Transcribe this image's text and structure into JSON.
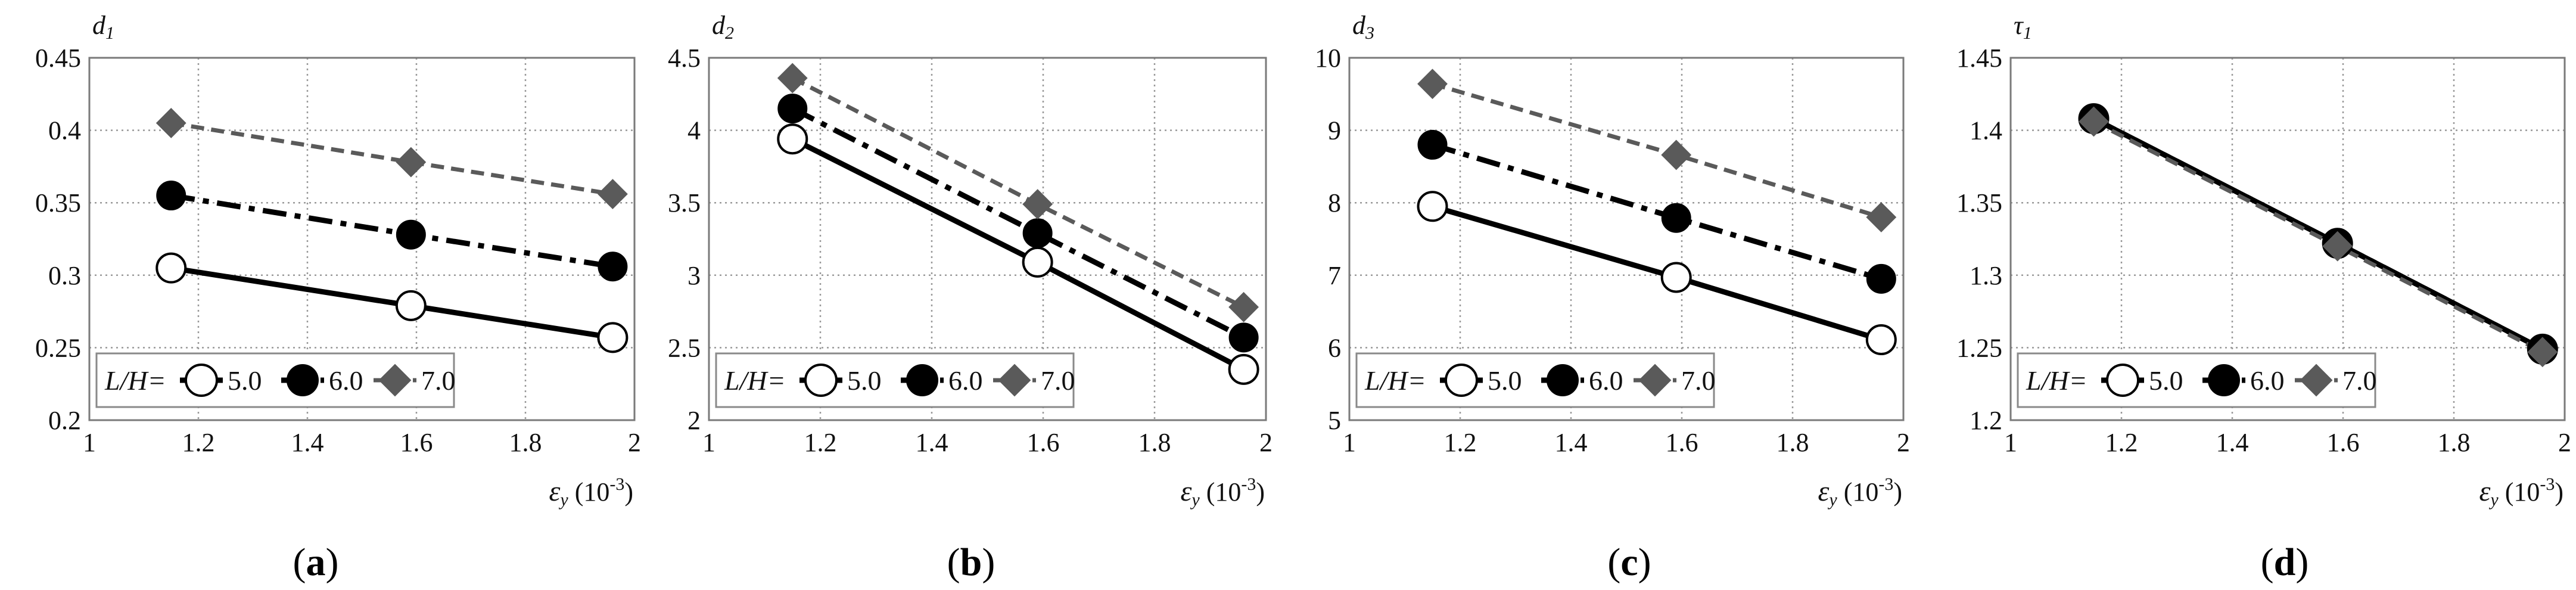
{
  "legend": {
    "prefix": "L/H=",
    "entries": [
      "5.0",
      "6.0",
      "7.0"
    ]
  },
  "colors": {
    "series_5": "#000000",
    "series_6": "#000000",
    "series_7": "#5a5a5a",
    "grid": "#9a9a9a",
    "frame": "#7a7a7a",
    "legend_border": "#8a8a8a"
  },
  "markers": {
    "series_5": "circle-open",
    "series_6": "circle-filled",
    "series_7": "diamond-filled"
  },
  "chart_data": [
    {
      "type": "line",
      "ylabel_sym": "d",
      "ylabel_sub": "1",
      "xlabel_sym": "ε",
      "xlabel_sub": "y",
      "xlabel_unit": "(10",
      "xlabel_exp": "-3",
      "xlabel_close": ")",
      "caption": "a",
      "xlim": [
        1,
        2
      ],
      "ylim": [
        0.2,
        0.45
      ],
      "xticks": [
        "1",
        "1.2",
        "1.4",
        "1.6",
        "1.8",
        "2"
      ],
      "yticks": [
        "0.2",
        "0.25",
        "0.3",
        "0.35",
        "0.4",
        "0.45"
      ],
      "x": [
        1.15,
        1.59,
        1.96
      ],
      "series": [
        {
          "name": "5.0",
          "values": [
            0.305,
            0.279,
            0.257
          ]
        },
        {
          "name": "6.0",
          "values": [
            0.355,
            0.328,
            0.306
          ]
        },
        {
          "name": "7.0",
          "values": [
            0.405,
            0.378,
            0.356
          ]
        }
      ]
    },
    {
      "type": "line",
      "ylabel_sym": "d",
      "ylabel_sub": "2",
      "xlabel_sym": "ε",
      "xlabel_sub": "y",
      "xlabel_unit": "(10",
      "xlabel_exp": "-3",
      "xlabel_close": ")",
      "caption": "b",
      "xlim": [
        1,
        2
      ],
      "ylim": [
        2,
        4.5
      ],
      "xticks": [
        "1",
        "1.2",
        "1.4",
        "1.6",
        "1.8",
        "2"
      ],
      "yticks": [
        "2",
        "2.5",
        "3",
        "3.5",
        "4",
        "4.5"
      ],
      "x": [
        1.15,
        1.59,
        1.96
      ],
      "series": [
        {
          "name": "5.0",
          "values": [
            3.94,
            3.09,
            2.35
          ]
        },
        {
          "name": "6.0",
          "values": [
            4.15,
            3.29,
            2.57
          ]
        },
        {
          "name": "7.0",
          "values": [
            4.36,
            3.49,
            2.78
          ]
        }
      ]
    },
    {
      "type": "line",
      "ylabel_sym": "d",
      "ylabel_sub": "3",
      "xlabel_sym": "ε",
      "xlabel_sub": "y",
      "xlabel_unit": "(10",
      "xlabel_exp": "-3",
      "xlabel_close": ")",
      "caption": "c",
      "xlim": [
        1,
        2
      ],
      "ylim": [
        5,
        10
      ],
      "xticks": [
        "1",
        "1.2",
        "1.4",
        "1.6",
        "1.8",
        "2"
      ],
      "yticks": [
        "5",
        "6",
        "7",
        "8",
        "9",
        "10"
      ],
      "x": [
        1.15,
        1.59,
        1.96
      ],
      "series": [
        {
          "name": "5.0",
          "values": [
            7.95,
            6.97,
            6.11
          ]
        },
        {
          "name": "6.0",
          "values": [
            8.8,
            7.79,
            6.95
          ]
        },
        {
          "name": "7.0",
          "values": [
            9.64,
            8.66,
            7.8
          ]
        }
      ]
    },
    {
      "type": "line",
      "ylabel_sym": "τ",
      "ylabel_sub": "1",
      "xlabel_sym": "ε",
      "xlabel_sub": "y",
      "xlabel_unit": "(10",
      "xlabel_exp": "-3",
      "xlabel_close": ")",
      "caption": "d",
      "xlim": [
        1,
        2
      ],
      "ylim": [
        1.2,
        1.45
      ],
      "xticks": [
        "1",
        "1.2",
        "1.4",
        "1.6",
        "1.8",
        "2"
      ],
      "yticks": [
        "1.2",
        "1.25",
        "1.3",
        "1.35",
        "1.4",
        "1.45"
      ],
      "x": [
        1.15,
        1.59,
        1.96
      ],
      "series": [
        {
          "name": "5.0",
          "values": [
            1.408,
            1.322,
            1.249
          ]
        },
        {
          "name": "6.0",
          "values": [
            1.408,
            1.322,
            1.249
          ]
        },
        {
          "name": "7.0",
          "values": [
            1.406,
            1.32,
            1.247
          ]
        }
      ]
    }
  ]
}
